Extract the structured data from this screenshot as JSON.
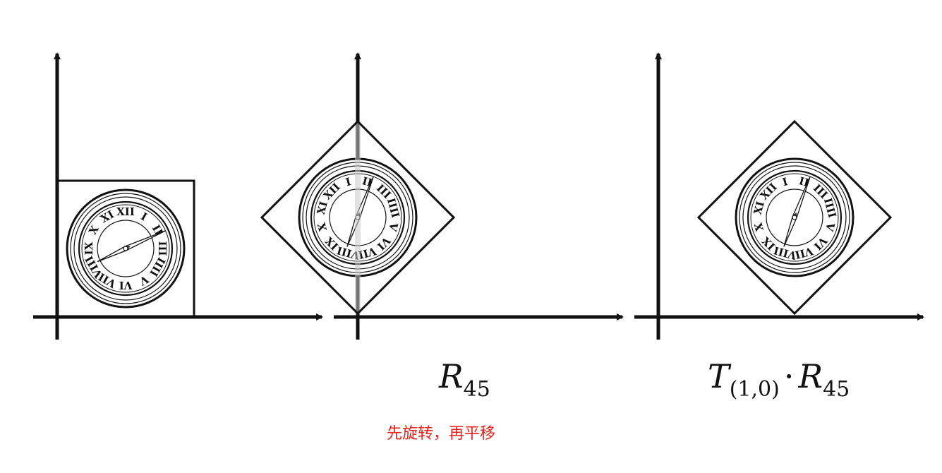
{
  "labels": {
    "rotate": {
      "main": "R",
      "sub": "45"
    },
    "translate_rotate": {
      "main1": "T",
      "sub1": "(1,0)",
      "op": "·",
      "main2": "R",
      "sub2": "45"
    }
  },
  "caption": "先旋转，再平移",
  "colors": {
    "ink": "#111111",
    "caption": "#e8221b",
    "guide": "#c8c8c8"
  },
  "numerals": [
    "XII",
    "I",
    "II",
    "III",
    "IIII",
    "V",
    "VI",
    "VII",
    "VIII",
    "IX",
    "X",
    "XI"
  ]
}
